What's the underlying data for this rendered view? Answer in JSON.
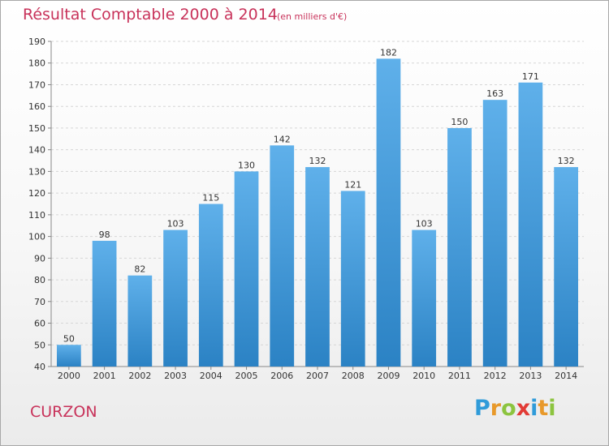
{
  "colors": {
    "title": "#c8325a",
    "bar_top": "#5fb0ea",
    "bar_bottom": "#2b82c4",
    "grid": "#d6d6d6",
    "axis_text": "#333333"
  },
  "commune": "CURZON",
  "logo": {
    "text": "Proxiti",
    "letters": [
      {
        "ch": "P",
        "color": "#2f9bd9"
      },
      {
        "ch": "r",
        "color": "#e8992a"
      },
      {
        "ch": "o",
        "color": "#8cc43f"
      },
      {
        "ch": "x",
        "color": "#e23b35"
      },
      {
        "ch": "i",
        "color": "#2f9bd9"
      },
      {
        "ch": "t",
        "color": "#e8992a"
      },
      {
        "ch": "i",
        "color": "#8cc43f"
      }
    ]
  },
  "chart_data": {
    "type": "bar",
    "title": "Résultat Comptable 2000 à 2014",
    "subtitle": "(en milliers d'€)",
    "categories": [
      "2000",
      "2001",
      "2002",
      "2003",
      "2004",
      "2005",
      "2006",
      "2007",
      "2008",
      "2009",
      "2010",
      "2011",
      "2012",
      "2013",
      "2014"
    ],
    "values": [
      50,
      98,
      82,
      103,
      115,
      130,
      142,
      132,
      121,
      182,
      103,
      150,
      163,
      171,
      132
    ],
    "ylim": [
      40,
      190
    ],
    "yticks": [
      40,
      50,
      60,
      70,
      80,
      90,
      100,
      110,
      120,
      130,
      140,
      150,
      160,
      170,
      180,
      190
    ],
    "xlabel": "",
    "ylabel": "",
    "grid": true
  }
}
